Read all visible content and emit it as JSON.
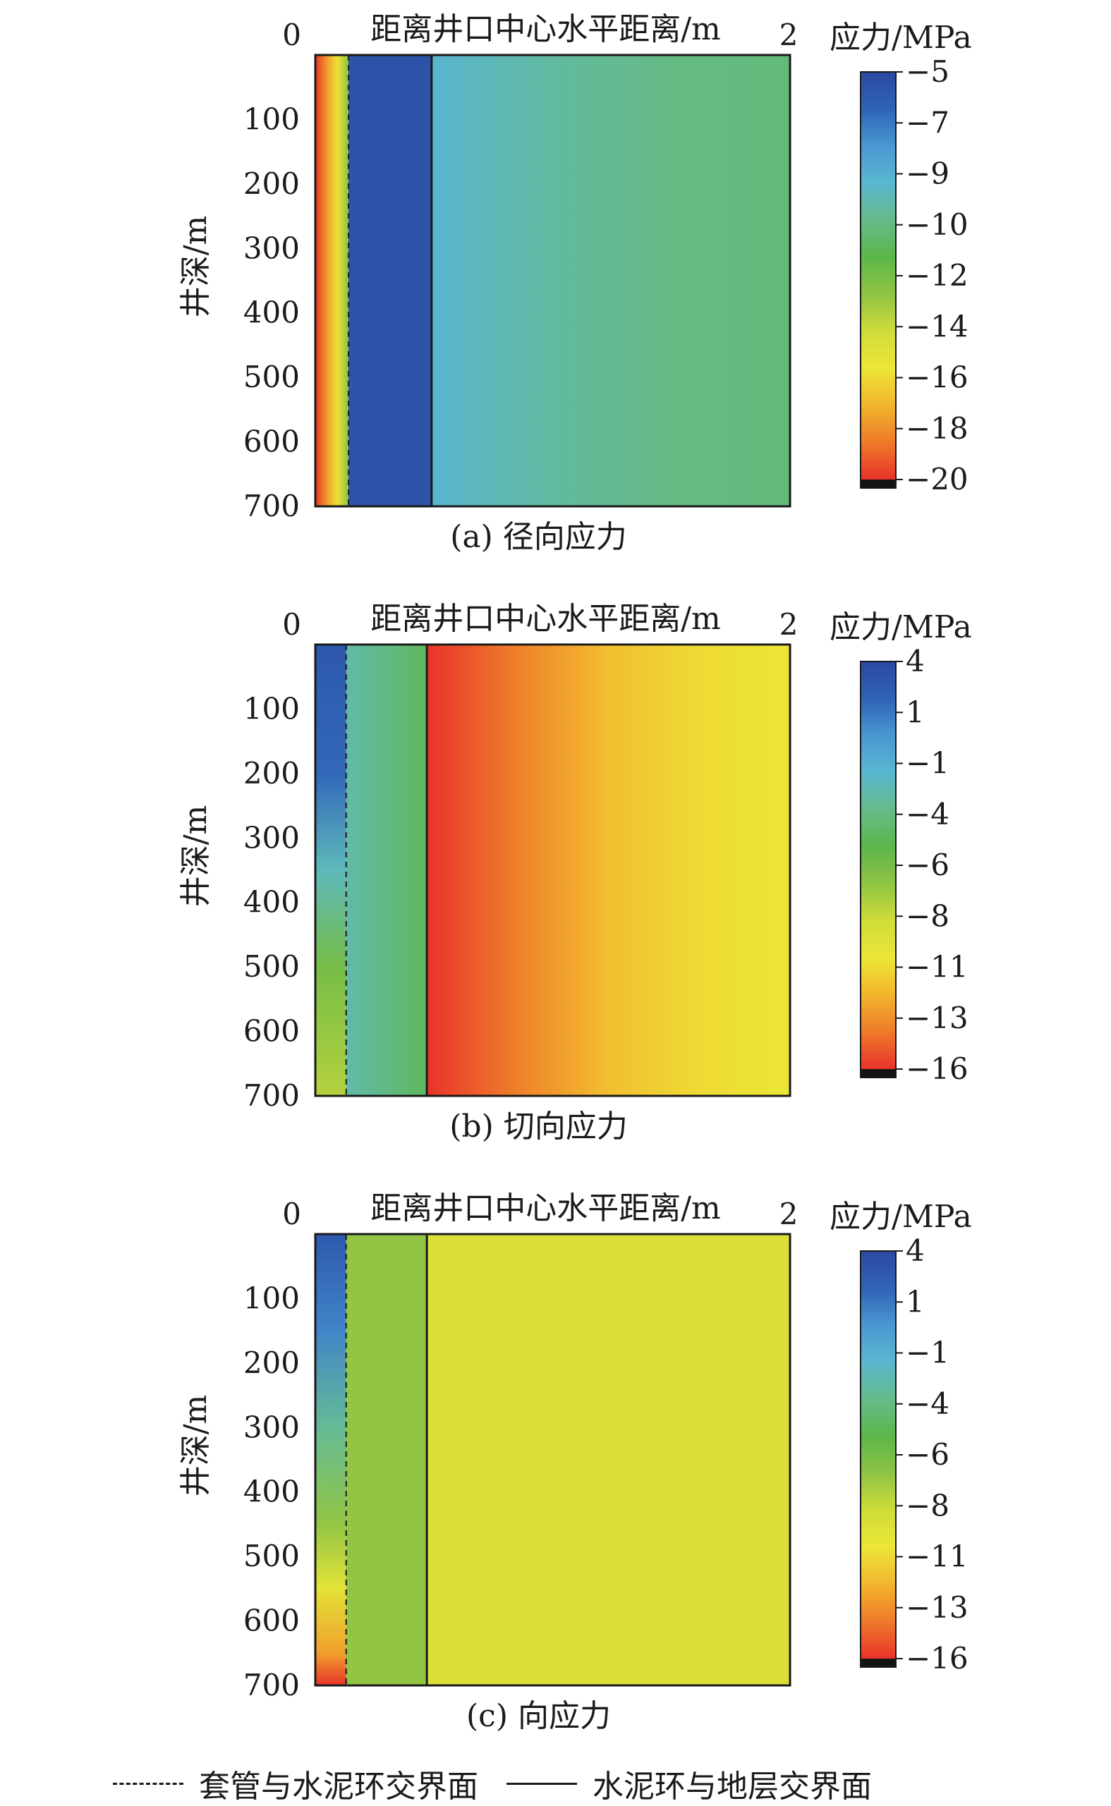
{
  "colors": {
    "stops": [
      "#2b4aa0",
      "#2f63b6",
      "#4a97d2",
      "#5ab8d0",
      "#66bb8a",
      "#5cb64a",
      "#8fc443",
      "#cfdc3a",
      "#ece636",
      "#f3b52e",
      "#ee7a2a",
      "#e8332a",
      "#141414"
    ],
    "frame": "#1a1a1a"
  },
  "legend": {
    "dashed_label": "套管与水泥环交界面",
    "solid_label": "水泥环与地层交界面"
  },
  "chart_data": [
    {
      "type": "heatmap",
      "caption": "(a) 径向应力",
      "xlabel": "距离井口中心水平距离/m",
      "ylabel": "井深/m",
      "x_ticks": [
        "0",
        "2"
      ],
      "xlim": [
        0,
        2
      ],
      "y_ticks": [
        "100",
        "200",
        "300",
        "400",
        "500",
        "600",
        "700"
      ],
      "ylim": [
        0,
        700
      ],
      "colorbar": {
        "title": "应力/MPa",
        "ticks": [
          "−5",
          "−7",
          "−9",
          "−10",
          "−12",
          "−14",
          "−16",
          "−18",
          "−20"
        ],
        "range": [
          -20,
          -5
        ]
      },
      "interfaces": {
        "casing_cement": 0.14,
        "cement_formation": 0.49
      },
      "regions": [
        {
          "name": "casing",
          "x": [
            0,
            0.14
          ],
          "values_by_x": [
            -20,
            -18,
            -16,
            -13
          ]
        },
        {
          "name": "cement",
          "x": [
            0.14,
            0.49
          ],
          "values_by_x": [
            -5.5,
            -5.5
          ]
        },
        {
          "name": "formation",
          "x": [
            0.49,
            2
          ],
          "values_by_x": [
            -9,
            -10,
            -10.6,
            -10.8
          ]
        }
      ]
    },
    {
      "type": "heatmap",
      "caption": "(b) 切向应力",
      "xlabel": "距离井口中心水平距离/m",
      "ylabel": "井深/m",
      "x_ticks": [
        "0",
        "2"
      ],
      "xlim": [
        0,
        2
      ],
      "y_ticks": [
        "100",
        "200",
        "300",
        "400",
        "500",
        "600",
        "700"
      ],
      "ylim": [
        0,
        700
      ],
      "colorbar": {
        "title": "应力/MPa",
        "ticks": [
          "4",
          "1",
          "−1",
          "−4",
          "−6",
          "−8",
          "−11",
          "−13",
          "−16"
        ],
        "range": [
          -16,
          4
        ]
      },
      "interfaces": {
        "casing_cement": 0.13,
        "cement_formation": 0.47
      },
      "regions": [
        {
          "name": "casing",
          "x": [
            0,
            0.13
          ],
          "values_by_depth": {
            "depth": [
              0,
              200,
              350,
              500,
              700
            ],
            "value": [
              3,
              2,
              -2,
              -6,
              -8
            ]
          }
        },
        {
          "name": "cement",
          "x": [
            0.13,
            0.47
          ],
          "values_by_x": [
            -2.5,
            -4.5
          ]
        },
        {
          "name": "formation",
          "x": [
            0.47,
            2
          ],
          "values_by_x": [
            -16,
            -14,
            -12,
            -11,
            -10.5
          ]
        }
      ]
    },
    {
      "type": "heatmap",
      "caption": "(c) 向应力",
      "xlabel": "距离井口中心水平距离/m",
      "ylabel": "井深/m",
      "x_ticks": [
        "0",
        "2"
      ],
      "xlim": [
        0,
        2
      ],
      "y_ticks": [
        "100",
        "200",
        "300",
        "400",
        "500",
        "600",
        "700"
      ],
      "ylim": [
        0,
        700
      ],
      "colorbar": {
        "title": "应力/MPa",
        "ticks": [
          "4",
          "1",
          "−1",
          "−4",
          "−6",
          "−8",
          "−11",
          "−13",
          "−16"
        ],
        "range": [
          -16,
          4
        ]
      },
      "interfaces": {
        "casing_cement": 0.13,
        "cement_formation": 0.47
      },
      "regions": [
        {
          "name": "casing",
          "x": [
            0,
            0.13
          ],
          "values_by_depth": {
            "depth": [
              0,
              150,
              300,
              450,
              550,
              650,
              700
            ],
            "value": [
              3,
              1,
              -3,
              -7,
              -10,
              -13,
              -16
            ]
          }
        },
        {
          "name": "cement",
          "x": [
            0.13,
            0.47
          ],
          "value": -7
        },
        {
          "name": "formation",
          "x": [
            0.47,
            2
          ],
          "value": -9.5
        }
      ]
    }
  ]
}
